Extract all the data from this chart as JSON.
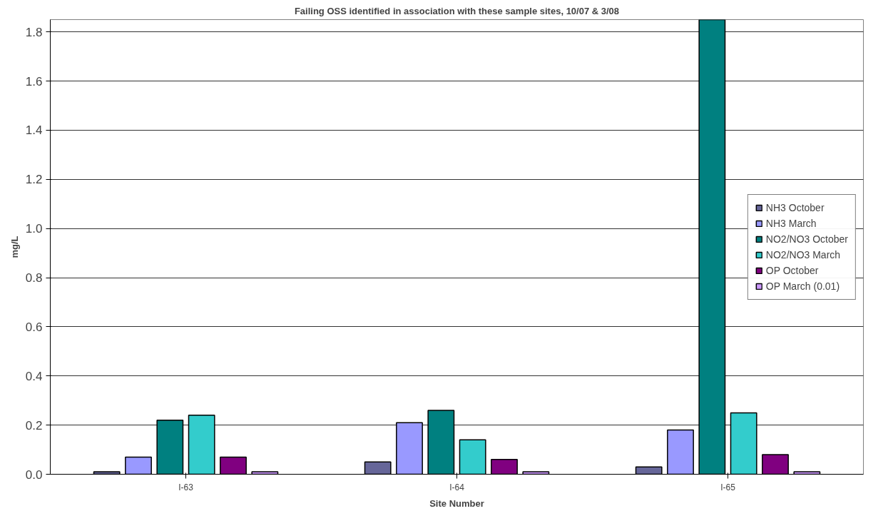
{
  "chart_data": {
    "type": "bar",
    "title": "Failing OSS identified in association with these sample sites, 10/07 & 3/08",
    "xlabel": "Site Number",
    "ylabel": "mg/L",
    "categories": [
      "I-63",
      "I-64",
      "I-65"
    ],
    "series": [
      {
        "name": "NH3 October",
        "color": "#666699",
        "values": [
          0.01,
          0.05,
          0.03
        ]
      },
      {
        "name": "NH3 March",
        "color": "#9999ff",
        "values": [
          0.07,
          0.21,
          0.18
        ]
      },
      {
        "name": "NO2/NO3 October",
        "color": "#008080",
        "values": [
          0.22,
          0.26,
          1.85
        ]
      },
      {
        "name": "NO2/NO3 March",
        "color": "#33cccc",
        "values": [
          0.24,
          0.14,
          0.25
        ]
      },
      {
        "name": "OP October",
        "color": "#800080",
        "values": [
          0.07,
          0.06,
          0.08
        ]
      },
      {
        "name": "OP March (0.01)",
        "color": "#cc99ff",
        "values": [
          0.01,
          0.01,
          0.01
        ]
      }
    ],
    "ylim": [
      0,
      1.85
    ],
    "yticks": [
      {
        "value": 0,
        "label": "0.0"
      },
      0.2,
      0.4,
      0.6,
      0.8,
      {
        "value": 1,
        "label": "1.0"
      },
      1.2,
      1.4,
      1.6,
      1.8
    ],
    "grid": "y",
    "legend": "right"
  }
}
